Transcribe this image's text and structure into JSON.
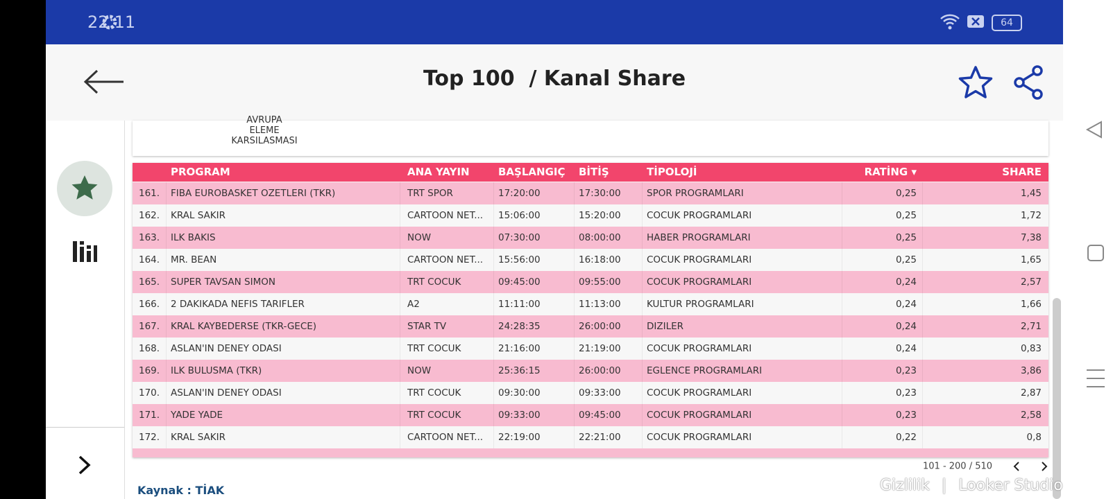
{
  "status_bar": {
    "time": "22:11",
    "battery": "64"
  },
  "header": {
    "title": "Top 100  / Kanal Share"
  },
  "card": {
    "lines": [
      "AVRUPA",
      "ELEME",
      "KARSILASMASI"
    ]
  },
  "table": {
    "columns": [
      "PROGRAM",
      "ANA YAYIN",
      "BAŞLANGIÇ",
      "BİTİŞ",
      "TİPOLOJİ",
      "RATİNG ▾",
      "SHARE"
    ],
    "rows": [
      [
        "161.",
        "FIBA EUROBASKET OZETLERI (TKR)",
        "TRT SPOR",
        "17:20:00",
        "17:30:00",
        "SPOR PROGRAMLARI",
        "0,25",
        "1,45"
      ],
      [
        "162.",
        "KRAL SAKIR",
        "CARTOON NET...",
        "15:06:00",
        "15:20:00",
        "COCUK PROGRAMLARI",
        "0,25",
        "1,72"
      ],
      [
        "163.",
        "ILK BAKIS",
        "NOW",
        "07:30:00",
        "08:00:00",
        "HABER PROGRAMLARI",
        "0,25",
        "7,38"
      ],
      [
        "164.",
        "MR. BEAN",
        "CARTOON NET...",
        "15:56:00",
        "16:18:00",
        "COCUK PROGRAMLARI",
        "0,25",
        "1,65"
      ],
      [
        "165.",
        "SUPER TAVSAN SIMON",
        "TRT COCUK",
        "09:45:00",
        "09:55:00",
        "COCUK PROGRAMLARI",
        "0,24",
        "2,57"
      ],
      [
        "166.",
        "2 DAKIKADA NEFIS TARIFLER",
        "A2",
        "11:11:00",
        "11:13:00",
        "KULTUR PROGRAMLARI",
        "0,24",
        "1,66"
      ],
      [
        "167.",
        "KRAL KAYBEDERSE (TKR-GECE)",
        "STAR TV",
        "24:28:35",
        "26:00:00",
        "DIZILER",
        "0,24",
        "2,71"
      ],
      [
        "168.",
        "ASLAN'IN DENEY ODASI",
        "TRT COCUK",
        "21:16:00",
        "21:19:00",
        "COCUK PROGRAMLARI",
        "0,24",
        "0,83"
      ],
      [
        "169.",
        "ILK BULUSMA (TKR)",
        "NOW",
        "25:36:15",
        "26:00:00",
        "EGLENCE PROGRAMLARI",
        "0,23",
        "3,86"
      ],
      [
        "170.",
        "ASLAN'IN DENEY ODASI",
        "TRT COCUK",
        "09:30:00",
        "09:33:00",
        "COCUK PROGRAMLARI",
        "0,23",
        "2,87"
      ],
      [
        "171.",
        "YADE YADE",
        "TRT COCUK",
        "09:33:00",
        "09:45:00",
        "COCUK PROGRAMLARI",
        "0,23",
        "2,58"
      ],
      [
        "172.",
        "KRAL SAKIR",
        "CARTOON NET...",
        "22:19:00",
        "22:21:00",
        "COCUK PROGRAMLARI",
        "0,22",
        "0,8"
      ]
    ]
  },
  "pagination": {
    "range": "101 - 200 / 510"
  },
  "footer": {
    "source": "Kaynak : TİAK"
  },
  "watermark": {
    "privacy": "Gizlilik",
    "brand": "Looker Studio"
  }
}
